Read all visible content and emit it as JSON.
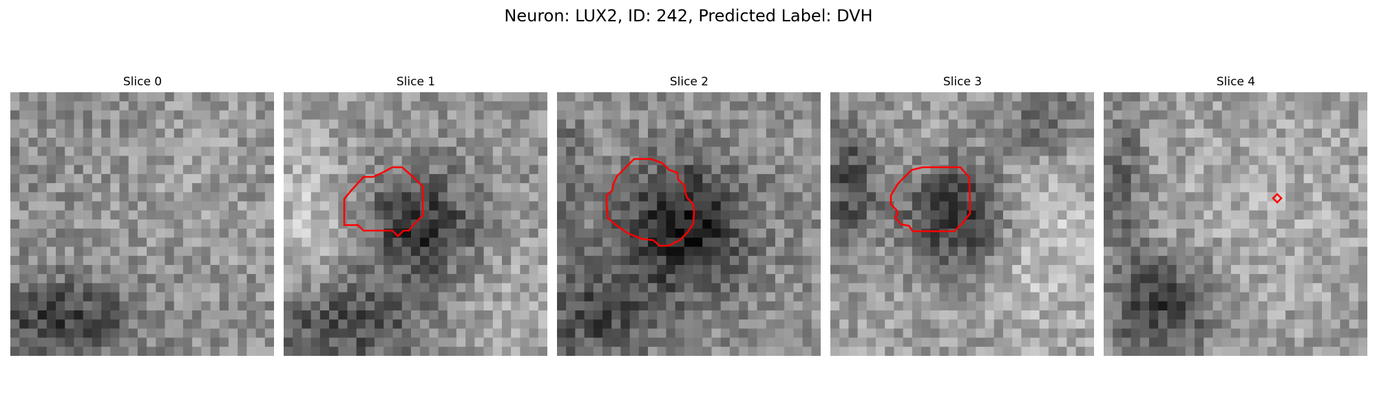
{
  "figure": {
    "title": "Neuron: LUX2, ID: 242, Predicted Label: DVH"
  },
  "colors": {
    "contour": "#ff0000",
    "background": "#ffffff"
  },
  "slices": [
    {
      "title": "Slice 0",
      "has_contour": false
    },
    {
      "title": "Slice 1",
      "has_contour": true
    },
    {
      "title": "Slice 2",
      "has_contour": true
    },
    {
      "title": "Slice 3",
      "has_contour": true
    },
    {
      "title": "Slice 4",
      "has_contour": true
    }
  ]
}
